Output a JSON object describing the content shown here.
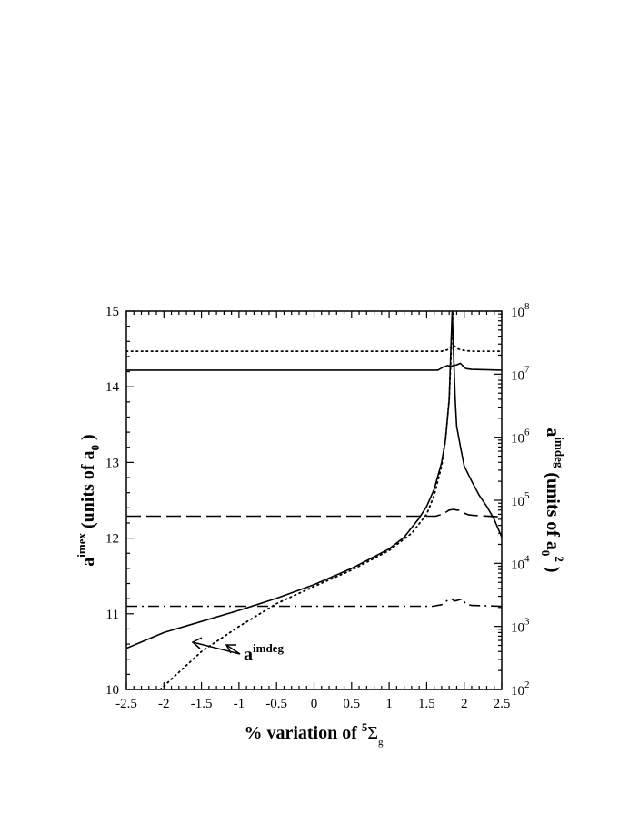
{
  "chart_data": {
    "type": "line",
    "x_axis": {
      "label_prefix": "% variation of ",
      "label_sup": "5",
      "label_symbol": "Σ",
      "label_sub": "g",
      "range": [
        -2.5,
        2.5
      ],
      "ticks": [
        "-2.5",
        "-2",
        "-1.5",
        "-1",
        "-0.5",
        "0",
        "0.5",
        "1",
        "1.5",
        "2",
        "2.5"
      ]
    },
    "y_left": {
      "label_main": "a",
      "label_sup": "imex",
      "label_rest": " (units of a",
      "label_sub": "0",
      "label_end": " )",
      "range": [
        10,
        15
      ],
      "ticks": [
        "10",
        "11",
        "12",
        "13",
        "14",
        "15"
      ]
    },
    "y_right": {
      "scale": "log",
      "label_main": "a",
      "label_sup": "imdeg",
      "label_rest": " (units of a",
      "label_sub": "0",
      "label_sup2": "2",
      "label_end": " )",
      "range": [
        100,
        100000000
      ],
      "tick_base": "10",
      "tick_exponents": [
        "2",
        "3",
        "4",
        "5",
        "6",
        "7",
        "8"
      ]
    },
    "annotation": {
      "main": "a",
      "sup": "imdeg"
    },
    "series": [
      {
        "axis": "right",
        "style": "solid",
        "x": [
          -2.5,
          -2.0,
          -1.5,
          -1.0,
          -0.5,
          0.0,
          0.5,
          1.0,
          1.2,
          1.4,
          1.5,
          1.6,
          1.7,
          1.75,
          1.8,
          1.82,
          1.84,
          1.86,
          1.88,
          1.9,
          1.95,
          2.0,
          2.1,
          2.2,
          2.3,
          2.4,
          2.5
        ],
        "y": [
          450,
          800,
          1200,
          1800,
          2800,
          4600,
          8300,
          17000,
          26000,
          52000,
          80000,
          150000,
          400000,
          900000,
          4000000,
          20000000,
          100000000,
          20000000,
          4000000,
          1500000,
          700000,
          350000,
          200000,
          120000,
          80000,
          50000,
          26000
        ]
      },
      {
        "axis": "right",
        "style": "dotted",
        "x": [
          -2.05,
          -1.5,
          -1.0,
          -0.5,
          0.0,
          0.5,
          1.0,
          1.3,
          1.5,
          1.6,
          1.7,
          1.75,
          1.8,
          1.83,
          1.85
        ],
        "y": [
          100,
          400,
          1000,
          2300,
          4300,
          7800,
          16000,
          30000,
          60000,
          120000,
          350000,
          900000,
          4000000,
          30000000,
          100000000
        ]
      },
      {
        "axis": "left",
        "style": "dotted",
        "x": [
          -2.5,
          1.7,
          1.78,
          1.82,
          1.85,
          1.88,
          1.92,
          2.0,
          2.1,
          2.5
        ],
        "y": [
          14.47,
          14.47,
          14.49,
          14.52,
          14.55,
          14.53,
          14.5,
          14.48,
          14.47,
          14.47
        ]
      },
      {
        "axis": "left",
        "style": "solid",
        "x": [
          -2.5,
          1.65,
          1.72,
          1.78,
          1.82,
          1.86,
          1.9,
          1.95,
          1.98,
          2.02,
          2.1,
          2.5
        ],
        "y": [
          14.22,
          14.22,
          14.26,
          14.28,
          14.27,
          14.28,
          14.29,
          14.31,
          14.28,
          14.24,
          14.23,
          14.22
        ]
      },
      {
        "axis": "left",
        "style": "dashed",
        "x": [
          -2.5,
          1.62,
          1.72,
          1.8,
          1.86,
          1.9,
          1.95,
          2.0,
          2.05,
          2.12,
          2.5
        ],
        "y": [
          12.29,
          12.29,
          12.32,
          12.37,
          12.38,
          12.37,
          12.37,
          12.33,
          12.31,
          12.3,
          12.28
        ]
      },
      {
        "axis": "left",
        "style": "dashdot",
        "x": [
          -2.5,
          1.58,
          1.7,
          1.78,
          1.83,
          1.87,
          1.92,
          1.98,
          2.02,
          2.1,
          2.5
        ],
        "y": [
          11.1,
          11.1,
          11.12,
          11.18,
          11.2,
          11.17,
          11.18,
          11.2,
          11.13,
          11.11,
          11.1
        ]
      }
    ]
  }
}
